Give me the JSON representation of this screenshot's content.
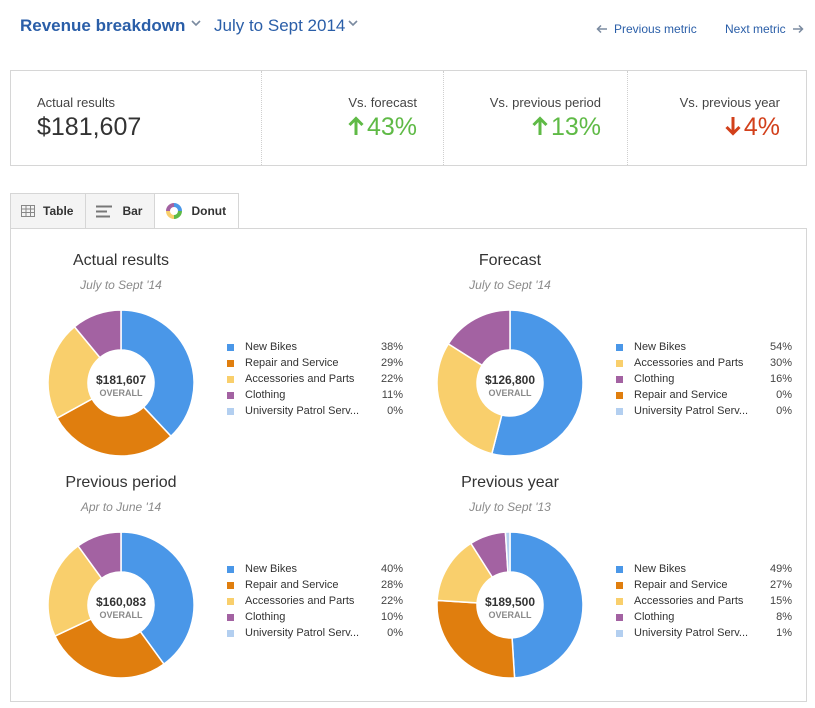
{
  "header": {
    "title": "Revenue breakdown",
    "period": "July to Sept 2014",
    "prev_label": "Previous metric",
    "next_label": "Next metric"
  },
  "summary": {
    "actual_label": "Actual results",
    "actual_value": "$181,607",
    "forecast_label": "Vs. forecast",
    "forecast_value": "43%",
    "forecast_dir": "up",
    "prev_period_label": "Vs. previous period",
    "prev_period_value": "13%",
    "prev_period_dir": "up",
    "prev_year_label": "Vs. previous year",
    "prev_year_value": "4%",
    "prev_year_dir": "down"
  },
  "tabs": [
    {
      "label": "Table",
      "icon": "table-icon",
      "active": false
    },
    {
      "label": "Bar",
      "icon": "bar-icon",
      "active": false
    },
    {
      "label": "Donut",
      "icon": "donut-icon",
      "active": true
    }
  ],
  "colors": {
    "New Bikes": "#4a97e8",
    "Repair and Service": "#e07e0e",
    "Accessories and Parts": "#f9cf6c",
    "Clothing": "#a362a2",
    "University Patrol Serv...": "#b3cff0",
    "up": "#5fba46",
    "down": "#d2401b",
    "accent": "#2a5ea8"
  },
  "chart_data": [
    {
      "type": "pie",
      "title": "Actual results",
      "subtitle": "July to Sept '14",
      "center_value": "$181,607",
      "center_label": "OVERALL",
      "categories": [
        "New Bikes",
        "Repair and Service",
        "Accessories and Parts",
        "Clothing",
        "University Patrol Serv..."
      ],
      "values": [
        38,
        29,
        22,
        11,
        0
      ],
      "labels": [
        "38%",
        "29%",
        "22%",
        "11%",
        "0%"
      ]
    },
    {
      "type": "pie",
      "title": "Forecast",
      "subtitle": "July to Sept '14",
      "center_value": "$126,800",
      "center_label": "OVERALL",
      "categories": [
        "New Bikes",
        "Accessories and Parts",
        "Clothing",
        "Repair and Service",
        "University Patrol Serv..."
      ],
      "values": [
        54,
        30,
        16,
        0,
        0
      ],
      "labels": [
        "54%",
        "30%",
        "16%",
        "0%",
        "0%"
      ]
    },
    {
      "type": "pie",
      "title": "Previous period",
      "subtitle": "Apr to June '14",
      "center_value": "$160,083",
      "center_label": "OVERALL",
      "categories": [
        "New Bikes",
        "Repair and Service",
        "Accessories and Parts",
        "Clothing",
        "University Patrol Serv..."
      ],
      "values": [
        40,
        28,
        22,
        10,
        0
      ],
      "labels": [
        "40%",
        "28%",
        "22%",
        "10%",
        "0%"
      ]
    },
    {
      "type": "pie",
      "title": "Previous year",
      "subtitle": "July to Sept '13",
      "center_value": "$189,500",
      "center_label": "OVERALL",
      "categories": [
        "New Bikes",
        "Repair and Service",
        "Accessories and Parts",
        "Clothing",
        "University Patrol Serv..."
      ],
      "values": [
        49,
        27,
        15,
        8,
        1
      ],
      "labels": [
        "49%",
        "27%",
        "15%",
        "8%",
        "1%"
      ]
    }
  ]
}
